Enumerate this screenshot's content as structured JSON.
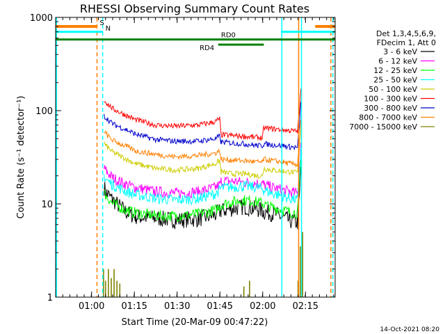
{
  "chart_data": {
    "type": "line",
    "title": "RHESSI Observing Summary Count Rates",
    "xlabel": "Start Time (20-Mar-09 00:47:22)",
    "ylabel": "Count Rate (s⁻¹ detector⁻¹)",
    "x_tick_labels": [
      "01:00",
      "01:15",
      "01:30",
      "01:45",
      "02:00",
      "02:15"
    ],
    "x_ticks_min": [
      12.6,
      27.6,
      42.6,
      57.6,
      72.6,
      87.6
    ],
    "xlim_min": [
      0,
      98
    ],
    "y_tick_labels": [
      "1",
      "10",
      "100",
      "1000"
    ],
    "y_ticks": [
      1,
      10,
      100,
      1000
    ],
    "ylim": [
      1,
      1000
    ],
    "yscale": "log",
    "legend": {
      "header": [
        "Det 1,3,4,5,6,9,",
        "FDecim 1, Att 0"
      ],
      "placement": "right"
    },
    "footer_timestamp": "14-Oct-2021 08:20",
    "series": [
      {
        "name": "3 - 6 keV",
        "color": "#000000",
        "x_min": [
          17,
          18,
          20,
          25,
          28,
          35,
          42,
          50,
          56,
          57.5,
          58,
          62,
          66,
          69,
          71,
          72.5,
          73,
          76,
          80,
          82,
          84.8,
          85.5,
          86
        ],
        "values": [
          15,
          13,
          11,
          8,
          7.3,
          7,
          6.7,
          6.9,
          7.6,
          8.3,
          8.4,
          8.9,
          9.3,
          9,
          8.7,
          8.5,
          8.2,
          7.9,
          7.1,
          6.6,
          6.3,
          12,
          25
        ]
      },
      {
        "name": "6 - 12 keV",
        "color": "#ff00ff",
        "x_min": [
          17,
          18,
          20,
          25,
          28,
          35,
          42,
          50,
          56,
          57.5,
          58,
          62,
          66,
          69,
          71,
          72.5,
          73,
          76,
          80,
          82,
          84.8,
          85.5,
          86
        ],
        "values": [
          24,
          22,
          19,
          16,
          15,
          13.5,
          13,
          13.5,
          15,
          16,
          17.5,
          17.5,
          17,
          16.8,
          16.6,
          16.5,
          16,
          15,
          14,
          13.5,
          13,
          25,
          45
        ]
      },
      {
        "name": "12 - 25 keV",
        "color": "#00ff00",
        "x_min": [
          17,
          18,
          20,
          25,
          28,
          35,
          42,
          50,
          56,
          57.5,
          58,
          62,
          66,
          69,
          71,
          72.5,
          73,
          76,
          80,
          82,
          84.8,
          85.5,
          86
        ],
        "values": [
          13,
          12,
          10,
          8.5,
          8,
          7.5,
          7.4,
          7.8,
          8.6,
          9.3,
          9.8,
          10.5,
          11,
          10.8,
          10.4,
          10.2,
          9.8,
          9.2,
          8.6,
          8.2,
          8,
          15,
          30
        ]
      },
      {
        "name": "25 - 50 keV",
        "color": "#00ffff",
        "x_min": [
          17,
          18,
          20,
          25,
          28,
          35,
          42,
          50,
          56,
          57.5,
          58,
          62,
          66,
          69,
          71,
          72.5,
          73,
          76,
          80,
          82,
          84.8,
          85.5,
          86
        ],
        "values": [
          20,
          18,
          16,
          13.5,
          12.5,
          11.5,
          11,
          11.4,
          12.8,
          14,
          14.8,
          15.2,
          15.5,
          15.2,
          14.8,
          14.5,
          14,
          13,
          12,
          11.5,
          11,
          20,
          40
        ]
      },
      {
        "name": "50 - 100 keV",
        "color": "#cccc00",
        "x_min": [
          17,
          18,
          20,
          25,
          28,
          35,
          42,
          50,
          56,
          57.5,
          58,
          62,
          66,
          69,
          71,
          72.5,
          73,
          76,
          80,
          82,
          84.8,
          85.5,
          86
        ],
        "values": [
          45,
          41,
          36,
          30,
          27,
          24,
          23,
          24,
          27,
          29,
          22,
          21,
          21,
          20.5,
          20,
          20,
          24,
          23,
          22.5,
          22,
          21.5,
          40,
          80
        ]
      },
      {
        "name": "100 - 300 keV",
        "color": "#ff0000",
        "x_min": [
          17,
          18,
          20,
          25,
          28,
          35,
          42,
          50,
          56,
          57.5,
          58,
          62,
          66,
          69,
          71,
          72.5,
          73,
          76,
          80,
          82,
          84.8,
          85.5,
          86
        ],
        "values": [
          128,
          120,
          105,
          88,
          80,
          70,
          68,
          70,
          76,
          82,
          55,
          54,
          53,
          52,
          51.5,
          51,
          65,
          64,
          62,
          61,
          60,
          100,
          170
        ]
      },
      {
        "name": "300 - 800 keV",
        "color": "#0000cc",
        "x_min": [
          17,
          18,
          20,
          25,
          28,
          35,
          42,
          50,
          56,
          57.5,
          58,
          62,
          66,
          69,
          71,
          72.5,
          73,
          76,
          80,
          82,
          84.8,
          85.5,
          86
        ],
        "values": [
          88,
          82,
          72,
          62,
          56,
          49,
          47,
          47,
          50,
          53,
          46,
          45,
          44,
          43,
          42,
          42,
          44,
          43,
          42,
          41,
          40,
          70,
          120
        ]
      },
      {
        "name": "800 - 7000 keV",
        "color": "#ff8000",
        "x_min": [
          17,
          18,
          20,
          25,
          28,
          35,
          42,
          50,
          56,
          57.5,
          58,
          62,
          66,
          69,
          71,
          72.5,
          73,
          76,
          80,
          82,
          84.8,
          85.5,
          86
        ],
        "values": [
          60,
          55,
          48,
          41,
          37,
          34,
          32,
          33,
          35,
          37,
          30,
          29.5,
          29,
          28.5,
          28,
          28,
          30,
          29,
          28,
          27,
          26.5,
          45,
          80
        ]
      },
      {
        "name": "7000 - 15000 keV",
        "color": "#808000",
        "x_min": [
          16.8,
          17.5,
          18.5,
          19.5,
          20.5,
          21.5,
          22.5,
          66,
          68,
          85,
          85.8,
          86.6
        ],
        "values": [
          2.0,
          1.5,
          2.0,
          1.6,
          2.0,
          1.5,
          1.4,
          1.3,
          1.5,
          1.5,
          3.5,
          5.0
        ]
      }
    ],
    "annotations": {
      "attenuator_bars": [
        {
          "label": "",
          "color": "#ff8000",
          "x_min": [
            0,
            14.5
          ],
          "value": 800
        },
        {
          "label": "S",
          "color": "#ff8000",
          "x_min": [
            14.5,
            14.5
          ],
          "value": 800
        },
        {
          "label": "",
          "color": "#ff8000",
          "x_min": [
            91,
            98
          ],
          "value": 800
        }
      ],
      "night_bars": [
        {
          "label": "",
          "color": "#00ffff",
          "x_min": [
            0,
            16.5
          ],
          "value": 700
        },
        {
          "label": "N",
          "color": "#00ffff",
          "x_min": [
            16.5,
            16.5
          ],
          "value": 700
        },
        {
          "label": "",
          "color": "#00ffff",
          "x_min": [
            79,
            98
          ],
          "value": 700
        }
      ],
      "decimation_bars": [
        {
          "label": "RD0",
          "color": "#008000",
          "x_min": [
            0,
            98
          ],
          "value": 580
        },
        {
          "label": "RD4",
          "color": "#008000",
          "x_min": [
            57,
            73
          ],
          "value": 510
        }
      ],
      "vertical_lines": [
        {
          "color": "#ff8000",
          "style": "dashed",
          "x_min": 14.5
        },
        {
          "color": "#00ffff",
          "style": "dashed",
          "x_min": 16.5
        },
        {
          "color": "#00ffff",
          "style": "solid",
          "x_min": 0.3
        },
        {
          "color": "#00ffff",
          "style": "solid",
          "x_min": 79.3
        },
        {
          "color": "#ff8000",
          "style": "solid",
          "x_min": 85.2
        },
        {
          "color": "#00ffff",
          "style": "solid",
          "x_min": 86.2
        },
        {
          "color": "#ff8000",
          "style": "dashed",
          "x_min": 96.5
        },
        {
          "color": "#00ffff",
          "style": "dashed",
          "x_min": 97.2
        }
      ]
    }
  }
}
